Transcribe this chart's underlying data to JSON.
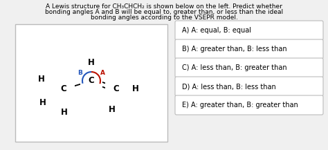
{
  "title_line1": "A Lewis structure for CH₃CHCH₂ is shown below on the left. Predict whether",
  "title_line2": "bonding angles A and B will be equal to, greater than, or less than the ideal",
  "title_line3": "bonding angles according to the VSEPR model.",
  "options": [
    "A) A: equal, B: equal",
    "B) A: greater than, B: less than",
    "C) A: less than, B: greater than",
    "D) A: less than, B: less than",
    "E) A: greater than, B: greater than"
  ],
  "box_bg": "#ffffff",
  "box_edge": "#bbbbbb",
  "option_box_bg": "#ffffff",
  "option_box_edge": "#bbbbbb",
  "bg_color": "#f0f0f0",
  "text_color": "#000000",
  "angle_A_color": "#bb1100",
  "angle_B_color": "#2255bb",
  "font_size_title": 6.5,
  "font_size_options": 7.0,
  "font_size_molecule": 8.5,
  "font_size_angle_label": 6.5
}
